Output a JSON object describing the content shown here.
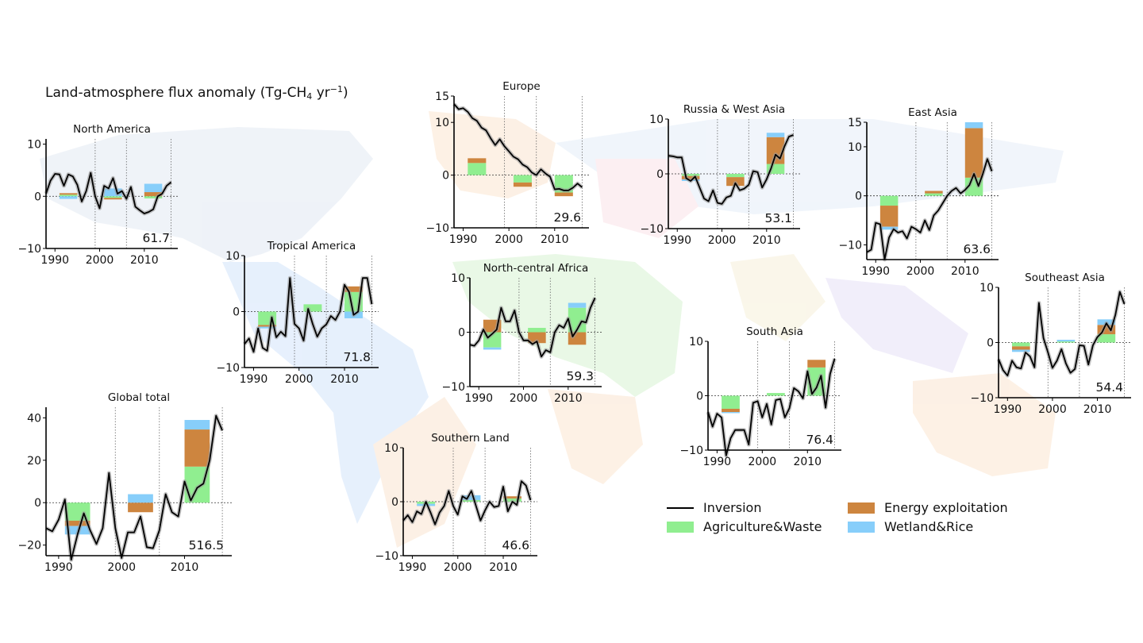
{
  "figure_title": {
    "main": "Land-atmosphere flux anomaly (Tg-CH",
    "sub": "4",
    "unit": " yr",
    "sup": "−1",
    "close": ")"
  },
  "colors": {
    "inversion": "#000000",
    "uncertainty": "#9a9a9a",
    "agriculture": "#90ee90",
    "energy": "#cd853f",
    "wetland": "#87cefa"
  },
  "legend": [
    {
      "key": "inversion",
      "label": "Inversion",
      "kind": "line"
    },
    {
      "key": "energy",
      "label": "Energy exploitation",
      "kind": "patch"
    },
    {
      "key": "agriculture",
      "label": "Agriculture&Waste",
      "kind": "patch"
    },
    {
      "key": "wetland",
      "label": "Wetland&Rice",
      "kind": "patch"
    }
  ],
  "chart_data": {
    "type": "line",
    "background": "world map of regions (faint)",
    "x": [
      1988,
      1989,
      1990,
      1991,
      1992,
      1993,
      1994,
      1995,
      1996,
      1997,
      1998,
      1999,
      2000,
      2001,
      2002,
      2003,
      2004,
      2005,
      2006,
      2007,
      2008,
      2009,
      2010,
      2011,
      2012,
      2013,
      2014,
      2015,
      2016
    ],
    "xticks": [
      1990,
      2000,
      2010
    ],
    "xlim": [
      1988,
      2017.5
    ],
    "period_dividers": [
      1999,
      2006,
      2016
    ],
    "bar_periods": [
      [
        1991,
        1995
      ],
      [
        2001,
        2005
      ],
      [
        2010,
        2014
      ]
    ],
    "panels": [
      {
        "id": "north-america",
        "title": "North America",
        "total": "61.7",
        "ylim": [
          -10,
          11
        ],
        "yticks": [
          -10,
          0,
          10
        ],
        "inversion": [
          0.5,
          3,
          4.3,
          4.2,
          2,
          4.2,
          3.8,
          2.2,
          -1,
          1,
          4.5,
          0,
          -2.3,
          2,
          1.5,
          3.5,
          0.5,
          1,
          -0.5,
          1.8,
          -2,
          -2.7,
          -3.3,
          -3,
          -2.5,
          0,
          0.5,
          2,
          2.7
        ],
        "bars": [
          [
            [
              "agriculture",
              0,
              0.3
            ],
            [
              "energy",
              0.3,
              0.6
            ],
            [
              "wetland",
              0,
              -0.5
            ]
          ],
          [
            [
              "wetland",
              0,
              1.5
            ],
            [
              "agriculture",
              0,
              -0.3
            ],
            [
              "energy",
              -0.3,
              -0.6
            ]
          ],
          [
            [
              "energy",
              0,
              0.8
            ],
            [
              "wetland",
              0.8,
              2.4
            ],
            [
              "agriculture",
              0,
              -0.4
            ]
          ]
        ]
      },
      {
        "id": "tropical-america",
        "title": "Tropical America",
        "total": "71.8",
        "ylim": [
          -10,
          10
        ],
        "yticks": [
          -10,
          0,
          10
        ],
        "inversion": [
          -5.8,
          -4.8,
          -7.2,
          -3,
          -6.5,
          -7,
          -1,
          -4.6,
          -3.6,
          -4.4,
          6,
          -2.2,
          -3,
          -5.2,
          0.5,
          -2.2,
          -4.5,
          -3,
          -2.3,
          -0.8,
          -1.5,
          0,
          4.8,
          3.5,
          -0.6,
          0,
          6,
          6,
          1.3
        ],
        "bars": [
          [
            [
              "agriculture",
              0,
              -2.4
            ],
            [
              "energy",
              -2.4,
              -2.7
            ],
            [
              "wetland",
              -2.7,
              -3
            ]
          ],
          [
            [
              "agriculture",
              0,
              1.3
            ]
          ],
          [
            [
              "agriculture",
              0,
              3.5
            ],
            [
              "energy",
              3.5,
              4.5
            ],
            [
              "wetland",
              0,
              -1.2
            ]
          ]
        ]
      },
      {
        "id": "europe",
        "title": "Europe",
        "total": "29.6",
        "ylim": [
          -10,
          15
        ],
        "yticks": [
          -10,
          0,
          10,
          15
        ],
        "inversion": [
          13.5,
          12.5,
          12.7,
          12,
          10.8,
          10.3,
          9,
          8.5,
          7,
          5.7,
          6.8,
          5.5,
          4.5,
          3.5,
          3,
          2,
          1.5,
          0.5,
          0,
          1.1,
          0.3,
          -0.3,
          -2.7,
          -2.6,
          -2.9,
          -2.9,
          -2.4,
          -1.6,
          -2.3
        ],
        "bars": [
          [
            [
              "agriculture",
              0,
              2.3
            ],
            [
              "energy",
              2.3,
              3.2
            ]
          ],
          [
            [
              "agriculture",
              0,
              -1.4
            ],
            [
              "energy",
              -1.4,
              -2.2
            ]
          ],
          [
            [
              "agriculture",
              0,
              -3.3
            ],
            [
              "energy",
              -3.3,
              -4
            ]
          ]
        ]
      },
      {
        "id": "north-central-africa",
        "title": "North-central Africa",
        "total": "59.3",
        "ylim": [
          -10,
          10
        ],
        "yticks": [
          -10,
          0,
          10
        ],
        "inversion": [
          -2.3,
          -2.5,
          -1.5,
          0.5,
          -1,
          -0.3,
          0.5,
          4.5,
          2,
          2,
          4,
          0,
          -1.5,
          -1.5,
          -2.2,
          -1.7,
          -4.5,
          -3.3,
          -3.7,
          0,
          1.3,
          0.8,
          2.5,
          -0.8,
          0.5,
          2,
          1.8,
          4.5,
          6.3
        ],
        "bars": [
          [
            [
              "energy",
              0,
              2.3
            ],
            [
              "agriculture",
              0,
              -2.8
            ],
            [
              "wetland",
              -2.8,
              -3.2
            ]
          ],
          [
            [
              "agriculture",
              0,
              0.8
            ],
            [
              "energy",
              0,
              -2
            ]
          ],
          [
            [
              "agriculture",
              0,
              4.5
            ],
            [
              "wetland",
              4.5,
              5.4
            ],
            [
              "energy",
              0,
              -2.3
            ]
          ]
        ]
      },
      {
        "id": "russia-west-asia",
        "title": "Russia & West Asia",
        "total": "53.1",
        "ylim": [
          -10,
          10
        ],
        "yticks": [
          -10,
          0,
          10
        ],
        "inversion": [
          3.3,
          3.2,
          3,
          3,
          -0.8,
          -1.3,
          -0.5,
          -2.5,
          -4.5,
          -5,
          -3,
          -5.3,
          -5.5,
          -4.3,
          -4,
          -1.7,
          -3,
          -2.7,
          -2,
          0.5,
          0.3,
          -2.5,
          -1,
          1,
          3.5,
          2.8,
          5,
          6.8,
          7.1
        ],
        "bars": [
          [
            [
              "agriculture",
              0,
              -0.4
            ],
            [
              "energy",
              -0.4,
              -1
            ],
            [
              "wetland",
              -1,
              -1.3
            ]
          ],
          [
            [
              "agriculture",
              0,
              -0.6
            ],
            [
              "energy",
              -0.6,
              -2.2
            ]
          ],
          [
            [
              "agriculture",
              0,
              1.8
            ],
            [
              "energy",
              1.8,
              6.7
            ],
            [
              "wetland",
              6.7,
              7.5
            ]
          ]
        ]
      },
      {
        "id": "east-asia",
        "title": "East Asia",
        "total": "63.6",
        "ylim": [
          -13,
          15
        ],
        "yticks": [
          -10,
          0,
          10,
          15
        ],
        "inversion": [
          -11.5,
          -11,
          -5.5,
          -5.8,
          -13,
          -8.5,
          -6.8,
          -7.5,
          -7.2,
          -8.7,
          -6.3,
          -6.8,
          -7.5,
          -5,
          -7,
          -4,
          -3,
          -1.5,
          0,
          1,
          1.6,
          0.5,
          1.2,
          2.2,
          4.5,
          2,
          4.5,
          7.5,
          5
        ],
        "bars": [
          [
            [
              "agriculture",
              0,
              -2
            ],
            [
              "energy",
              -2,
              -6.3
            ],
            [
              "wetland",
              -6.3,
              -6.9
            ]
          ],
          [
            [
              "agriculture",
              0,
              0.5
            ],
            [
              "energy",
              0.5,
              1
            ]
          ],
          [
            [
              "agriculture",
              0,
              3.7
            ],
            [
              "energy",
              3.7,
              13.8
            ],
            [
              "wetland",
              13.8,
              15
            ]
          ]
        ]
      },
      {
        "id": "southeast-asia",
        "title": "Southeast Asia",
        "total": "54.4",
        "ylim": [
          -10,
          10
        ],
        "yticks": [
          -10,
          0,
          10
        ],
        "inversion": [
          -3,
          -5,
          -6,
          -3.3,
          -4.5,
          -4.7,
          -1.8,
          -2.5,
          -4.5,
          7.2,
          0.8,
          -1.8,
          -4.6,
          -3.3,
          -1.2,
          -3.8,
          -5.5,
          -4.8,
          -0.5,
          -0.6,
          -4,
          -0.5,
          1,
          1.8,
          3.5,
          2.2,
          5,
          9.2,
          7
        ],
        "bars": [
          [
            [
              "agriculture",
              0,
              -0.7
            ],
            [
              "energy",
              -0.7,
              -1.3
            ],
            [
              "wetland",
              -1.3,
              -1.7
            ]
          ],
          [
            [
              "agriculture",
              0,
              0.2
            ],
            [
              "wetland",
              0.2,
              0.5
            ]
          ],
          [
            [
              "agriculture",
              0,
              1.5
            ],
            [
              "energy",
              1.5,
              3.2
            ],
            [
              "wetland",
              3.2,
              4.2
            ]
          ]
        ]
      },
      {
        "id": "south-asia",
        "title": "South Asia",
        "total": "76.4",
        "ylim": [
          -10,
          10
        ],
        "yticks": [
          -10,
          0,
          10
        ],
        "inversion": [
          -3,
          -5.7,
          -3.3,
          -4,
          -11,
          -7.8,
          -6.3,
          -6.3,
          -6.3,
          -9,
          -1.3,
          -1,
          -4,
          -1.5,
          -5.3,
          -0.8,
          -0.6,
          -4,
          -2.3,
          1.4,
          0.8,
          -0.5,
          4.5,
          0.3,
          1.5,
          3.7,
          -2.2,
          4,
          6.8
        ],
        "bars": [
          [
            [
              "agriculture",
              0,
              -2.4
            ],
            [
              "energy",
              -2.4,
              -3
            ],
            [
              "wetland",
              -3,
              -3.2
            ]
          ],
          [
            [
              "agriculture",
              0,
              0.5
            ]
          ],
          [
            [
              "agriculture",
              0,
              5.2
            ],
            [
              "energy",
              5.2,
              6.6
            ]
          ]
        ]
      },
      {
        "id": "southern-land",
        "title": "Southern Land",
        "total": "46.6",
        "ylim": [
          -10,
          10
        ],
        "yticks": [
          -10,
          0,
          10
        ],
        "inversion": [
          -3.5,
          -2.5,
          -3.8,
          -1.8,
          -2.3,
          0,
          -2,
          -4.2,
          -2,
          -0.8,
          2,
          -0.8,
          -2.4,
          1,
          0.5,
          2,
          -0.8,
          -3.5,
          -1.6,
          0,
          -1,
          -0.8,
          2.8,
          -1.8,
          0,
          -0.6,
          3.8,
          3,
          0.3
        ],
        "bars": [
          [
            [
              "agriculture",
              0,
              -0.4
            ],
            [
              "wetland",
              -0.4,
              -0.8
            ]
          ],
          [
            [
              "agriculture",
              0,
              0.3
            ],
            [
              "wetland",
              0.3,
              1.2
            ]
          ],
          [
            [
              "agriculture",
              0,
              0.6
            ],
            [
              "energy",
              0.6,
              1.0
            ]
          ]
        ]
      },
      {
        "id": "global-total",
        "title": "Global total",
        "total": "516.5",
        "ylim": [
          -25,
          45
        ],
        "yticks": [
          -20,
          0,
          20,
          40
        ],
        "inversion": [
          -12,
          -13.5,
          -8,
          1.5,
          -27,
          -15,
          -5,
          -13,
          -19.5,
          -12,
          14,
          -12,
          -26,
          -14,
          -14,
          -6.5,
          -21,
          -21.5,
          -13,
          4,
          -4.5,
          -6.5,
          10,
          1,
          7,
          9,
          20,
          41,
          34
        ],
        "bars": [
          [
            [
              "agriculture",
              0,
              -8.5
            ],
            [
              "energy",
              -8.5,
              -11
            ],
            [
              "wetland",
              -11,
              -15
            ]
          ],
          [
            [
              "energy",
              0,
              -4.5
            ],
            [
              "wetland",
              0,
              4
            ]
          ],
          [
            [
              "agriculture",
              0,
              17
            ],
            [
              "energy",
              17,
              34.5
            ],
            [
              "wetland",
              34.5,
              39
            ]
          ]
        ]
      }
    ]
  }
}
